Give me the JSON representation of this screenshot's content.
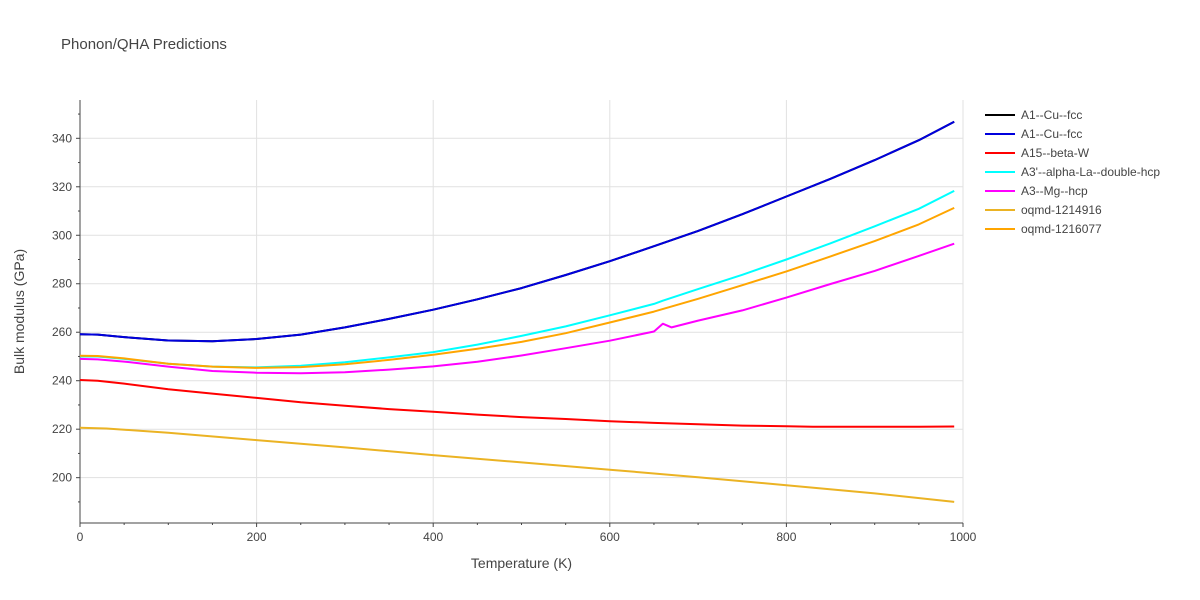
{
  "chart_data": {
    "type": "line",
    "title": "Phonon/QHA Predictions",
    "xlabel": "Temperature (K)",
    "ylabel": "Bulk modulus (GPa)",
    "xlim": [
      0,
      1000
    ],
    "ylim": [
      181.3,
      355.8
    ],
    "xticks": [
      0,
      200,
      400,
      600,
      800,
      1000
    ],
    "yticks": [
      200,
      220,
      240,
      260,
      280,
      300,
      320,
      340
    ],
    "grid": true,
    "legend_position": "right",
    "series": [
      {
        "name": "A1--Cu--fcc",
        "color": "#000000",
        "x": [
          0,
          20,
          50,
          100,
          150,
          200,
          250,
          300,
          350,
          400,
          450,
          500,
          550,
          600,
          650,
          700,
          750,
          800,
          850,
          900,
          950,
          990
        ],
        "y": [
          259.2,
          259.0,
          258.0,
          256.6,
          256.3,
          257.2,
          259.0,
          262.0,
          265.5,
          269.3,
          273.6,
          278.2,
          283.6,
          289.3,
          295.5,
          301.8,
          308.7,
          316.0,
          323.3,
          331.0,
          339.2,
          346.8
        ]
      },
      {
        "name": "A1--Cu--fcc",
        "color": "#0000dd",
        "x": [
          0,
          20,
          50,
          100,
          150,
          200,
          250,
          300,
          350,
          400,
          450,
          500,
          550,
          600,
          650,
          700,
          750,
          800,
          850,
          900,
          950,
          990
        ],
        "y": [
          259.2,
          259.0,
          258.0,
          256.6,
          256.3,
          257.2,
          259.0,
          262.0,
          265.5,
          269.3,
          273.6,
          278.2,
          283.6,
          289.3,
          295.5,
          301.8,
          308.7,
          316.0,
          323.3,
          331.0,
          339.2,
          346.8
        ]
      },
      {
        "name": "A15--beta-W",
        "color": "#ff0000",
        "x": [
          0,
          20,
          50,
          100,
          150,
          200,
          250,
          300,
          350,
          400,
          450,
          500,
          550,
          600,
          650,
          700,
          750,
          800,
          830,
          900,
          950,
          990
        ],
        "y": [
          240.3,
          240.0,
          238.8,
          236.5,
          234.7,
          232.9,
          231.1,
          229.7,
          228.3,
          227.2,
          226.0,
          225.0,
          224.2,
          223.3,
          222.6,
          222.0,
          221.5,
          221.2,
          221.0,
          221.0,
          221.0,
          221.1
        ]
      },
      {
        "name": "A3'--alpha-La--double-hcp",
        "color": "#00ffff",
        "x": [
          0,
          20,
          50,
          100,
          150,
          200,
          250,
          300,
          350,
          400,
          450,
          500,
          550,
          600,
          650,
          660,
          700,
          750,
          800,
          850,
          900,
          950,
          990
        ],
        "y": [
          250.0,
          250.0,
          249.0,
          247.0,
          245.8,
          245.5,
          246.2,
          247.6,
          249.6,
          251.8,
          254.9,
          258.5,
          262.4,
          267.0,
          271.7,
          273.0,
          277.8,
          283.7,
          290.0,
          296.7,
          303.7,
          310.9,
          318.3
        ]
      },
      {
        "name": "A3--Mg--hcp",
        "color": "#ff00ff",
        "x": [
          0,
          20,
          50,
          100,
          150,
          200,
          250,
          300,
          350,
          400,
          450,
          500,
          550,
          600,
          650,
          660,
          670,
          700,
          750,
          800,
          850,
          900,
          950,
          990
        ],
        "y": [
          249.0,
          248.8,
          247.9,
          245.8,
          244.0,
          243.3,
          243.1,
          243.5,
          244.6,
          245.9,
          247.8,
          250.4,
          253.4,
          256.5,
          260.3,
          263.5,
          262.0,
          264.8,
          269.0,
          274.3,
          279.9,
          285.3,
          291.5,
          296.5
        ]
      },
      {
        "name": "oqmd-1214916",
        "color": "#ebb324",
        "x": [
          0,
          30,
          100,
          200,
          300,
          400,
          500,
          600,
          700,
          800,
          900,
          990
        ],
        "y": [
          220.6,
          220.3,
          218.5,
          215.5,
          212.5,
          209.3,
          206.3,
          203.3,
          200.2,
          196.9,
          193.5,
          190.0
        ]
      },
      {
        "name": "oqmd-1216077",
        "color": "#ffa500",
        "x": [
          0,
          20,
          50,
          100,
          150,
          200,
          250,
          300,
          350,
          400,
          450,
          500,
          550,
          600,
          650,
          700,
          750,
          800,
          850,
          900,
          950,
          990
        ],
        "y": [
          250.3,
          250.2,
          249.2,
          247.0,
          245.8,
          245.3,
          245.6,
          246.8,
          248.6,
          250.7,
          253.2,
          256.0,
          259.6,
          264.0,
          268.5,
          273.8,
          279.4,
          285.1,
          291.3,
          297.6,
          304.5,
          311.3
        ]
      }
    ]
  }
}
